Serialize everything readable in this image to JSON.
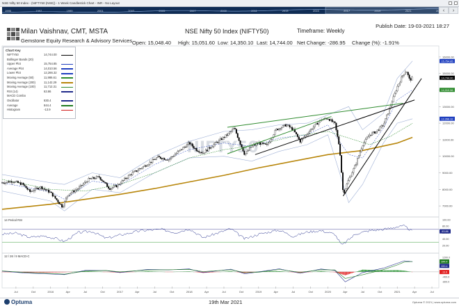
{
  "window": {
    "title": "NSE Nifty 50 Index - (NIFTY50 (NSE)) - 1 Week Candlestick Chart - INR - No Layout"
  },
  "overview": {
    "years": [
      "1995",
      "1997",
      "1999",
      "2001",
      "2003",
      "2005",
      "2007",
      "2009",
      "2011",
      "2013",
      "2015",
      "2017",
      "2019",
      "2021",
      "2023"
    ]
  },
  "header": {
    "author": "Milan Vaishnav, CMT, MSTA",
    "company": "Gemstone Equity Research & Advisory Services",
    "publish_date": "Publish Date: 19-03-2021 18:27",
    "chart_title": "NSE Nifty 50 Index (NIFTY50)",
    "timeframe": "Timeframe: Weekly",
    "quote": {
      "open": "Open: 15,048.40",
      "high": "High: 15,051.60",
      "low": "Low: 14,350.10",
      "last": "Last: 14,744.00",
      "net_change": "Net Change: -286.95",
      "change_pct": "Change (%): -1.91%"
    }
  },
  "legend": {
    "title": "Chart Key",
    "rows": [
      {
        "label": "NIFTY50",
        "value": "14,744.00",
        "color": "#000000"
      },
      {
        "label": "Bollinger Bands (20)",
        "value": "",
        "color": ""
      },
      {
        "label": "Upper Plot",
        "value": "15,754.85",
        "color": "#1f3fbf"
      },
      {
        "label": "Average Plot",
        "value": "14,010.56",
        "color": "#1f3fbf"
      },
      {
        "label": "Lower Plot",
        "value": "12,266.32",
        "color": "#1f3fbf"
      },
      {
        "label": "Moving Average (50)",
        "value": "11,986.61",
        "color": "#2e8b2e"
      },
      {
        "label": "Moving Average (200)",
        "value": "11,142.29",
        "color": "#b8860b"
      },
      {
        "label": "Moving Average (100)",
        "value": "11,712.31",
        "color": "#2e8b2e"
      },
      {
        "label": "RSI (14)",
        "value": "63.86",
        "color": "#1f2a8a"
      },
      {
        "label": "MACD Combo",
        "value": "",
        "color": ""
      },
      {
        "label": "Oscillator",
        "value": "830.4",
        "color": "#1f2a8a"
      },
      {
        "label": "Average",
        "value": "844.4",
        "color": "#1f7a1f"
      },
      {
        "label": "Histogram",
        "value": "-13.9",
        "color": "#d21c1c"
      }
    ]
  },
  "watermark": "NIFTY50",
  "footer": {
    "brand": "Optuma",
    "date": "19th Mar 2021",
    "copyright": "Optuma © 2021 | www.optuma.com"
  },
  "colors": {
    "candle": "#000000",
    "bollinger": "#1f3fbf",
    "ma50": "#2e8b2e",
    "ma200": "#b8860b",
    "trend_green": "#2e8b2e",
    "trend_black": "#000000",
    "rsi": "#1f2a8a",
    "macd_osc": "#1f2a8a",
    "macd_avg": "#1f7a1f",
    "hist_pos": "#1f8f2a",
    "hist_neg": "#e01e1e"
  },
  "chart_data": [
    {
      "type": "candlestick",
      "title": "NSE Nifty 50 Index (NIFTY50)",
      "ylim": [
        6500,
        16500
      ],
      "y_ticks": [
        "16000.00",
        "15000.00",
        "14000.00",
        "13000.00",
        "12000.00",
        "11000.00",
        "10000.00",
        "9000.00",
        "8000.00",
        "7000.00",
        "6000.00"
      ],
      "y_tick_values": [
        16000,
        15000,
        14000,
        13000,
        12000,
        11000,
        10000,
        9000,
        8000,
        7000,
        6000
      ],
      "x_ticks": [
        "Jul",
        "Oct",
        "2016",
        "Apr",
        "Jul",
        "Oct",
        "2017",
        "Apr",
        "Jul",
        "Oct",
        "2018",
        "Apr",
        "Jul",
        "Oct",
        "2019",
        "Apr",
        "Jul",
        "Oct",
        "2020",
        "Apr",
        "Jul",
        "Oct",
        "2021",
        "Apr",
        "Jul"
      ],
      "x_tick_values": [
        2015.5,
        2015.75,
        2016,
        2016.25,
        2016.5,
        2016.75,
        2017,
        2017.25,
        2017.5,
        2017.75,
        2018,
        2018.25,
        2018.5,
        2018.75,
        2019,
        2019.25,
        2019.5,
        2019.75,
        2020,
        2020.25,
        2020.5,
        2020.75,
        2021,
        2021.25,
        2021.5
      ],
      "xlim": [
        2015.3,
        2021.6
      ],
      "price_path": [
        [
          2015.3,
          8400
        ],
        [
          2015.45,
          8500
        ],
        [
          2015.6,
          8300
        ],
        [
          2015.7,
          7850
        ],
        [
          2015.85,
          8150
        ],
        [
          2016.0,
          7800
        ],
        [
          2016.1,
          7300
        ],
        [
          2016.17,
          6950
        ],
        [
          2016.25,
          7700
        ],
        [
          2016.4,
          8050
        ],
        [
          2016.55,
          8600
        ],
        [
          2016.7,
          8750
        ],
        [
          2016.85,
          8050
        ],
        [
          2016.95,
          8200
        ],
        [
          2017.15,
          8900
        ],
        [
          2017.35,
          9400
        ],
        [
          2017.55,
          9950
        ],
        [
          2017.7,
          9800
        ],
        [
          2017.85,
          10300
        ],
        [
          2018.0,
          10800
        ],
        [
          2018.1,
          10400
        ],
        [
          2018.2,
          10200
        ],
        [
          2018.35,
          10700
        ],
        [
          2018.55,
          11300
        ],
        [
          2018.65,
          11700
        ],
        [
          2018.8,
          10100
        ],
        [
          2018.9,
          10600
        ],
        [
          2019.0,
          10800
        ],
        [
          2019.12,
          10650
        ],
        [
          2019.25,
          11600
        ],
        [
          2019.4,
          11900
        ],
        [
          2019.5,
          11600
        ],
        [
          2019.6,
          10900
        ],
        [
          2019.75,
          11600
        ],
        [
          2019.9,
          12200
        ],
        [
          2020.0,
          12300
        ],
        [
          2020.1,
          11950
        ],
        [
          2020.17,
          10500
        ],
        [
          2020.22,
          7700
        ],
        [
          2020.3,
          8600
        ],
        [
          2020.4,
          9500
        ],
        [
          2020.5,
          10700
        ],
        [
          2020.6,
          11300
        ],
        [
          2020.7,
          11500
        ],
        [
          2020.8,
          11900
        ],
        [
          2020.9,
          13000
        ],
        [
          2021.0,
          14200
        ],
        [
          2021.08,
          14900
        ],
        [
          2021.13,
          15200
        ],
        [
          2021.18,
          14600
        ],
        [
          2021.22,
          14744
        ]
      ],
      "bollinger_upper": [
        [
          2015.3,
          8900
        ],
        [
          2016.0,
          8400
        ],
        [
          2016.2,
          8300
        ],
        [
          2016.6,
          9000
        ],
        [
          2017.0,
          8700
        ],
        [
          2017.5,
          10000
        ],
        [
          2018.0,
          10900
        ],
        [
          2018.5,
          11500
        ],
        [
          2018.9,
          11600
        ],
        [
          2019.3,
          11900
        ],
        [
          2019.7,
          12000
        ],
        [
          2020.0,
          12500
        ],
        [
          2020.3,
          13000
        ],
        [
          2020.5,
          11600
        ],
        [
          2020.8,
          12600
        ],
        [
          2021.0,
          14700
        ],
        [
          2021.22,
          15755
        ]
      ],
      "bollinger_lower": [
        [
          2015.3,
          7900
        ],
        [
          2016.0,
          7300
        ],
        [
          2016.2,
          6700
        ],
        [
          2016.6,
          8000
        ],
        [
          2017.0,
          7800
        ],
        [
          2017.5,
          9000
        ],
        [
          2018.0,
          9900
        ],
        [
          2018.5,
          10000
        ],
        [
          2018.9,
          9700
        ],
        [
          2019.3,
          10300
        ],
        [
          2019.7,
          10700
        ],
        [
          2020.0,
          11300
        ],
        [
          2020.3,
          7200
        ],
        [
          2020.5,
          8300
        ],
        [
          2020.8,
          10800
        ],
        [
          2021.0,
          12000
        ],
        [
          2021.22,
          12266
        ]
      ],
      "bollinger_avg": [
        [
          2015.3,
          8400
        ],
        [
          2016.0,
          7850
        ],
        [
          2016.2,
          7400
        ],
        [
          2016.6,
          8500
        ],
        [
          2017.0,
          8250
        ],
        [
          2017.5,
          9500
        ],
        [
          2018.0,
          10400
        ],
        [
          2018.5,
          10800
        ],
        [
          2018.9,
          10600
        ],
        [
          2019.3,
          11100
        ],
        [
          2019.7,
          11300
        ],
        [
          2020.0,
          11900
        ],
        [
          2020.3,
          10100
        ],
        [
          2020.5,
          9900
        ],
        [
          2020.8,
          11700
        ],
        [
          2021.0,
          13400
        ],
        [
          2021.22,
          14011
        ]
      ],
      "ma50": [
        [
          2015.3,
          8600
        ],
        [
          2016.0,
          8000
        ],
        [
          2016.5,
          7900
        ],
        [
          2017.0,
          8300
        ],
        [
          2017.5,
          9000
        ],
        [
          2018.0,
          9900
        ],
        [
          2018.5,
          10400
        ],
        [
          2019.0,
          10700
        ],
        [
          2019.5,
          11200
        ],
        [
          2020.0,
          11500
        ],
        [
          2020.3,
          11100
        ],
        [
          2020.6,
          10700
        ],
        [
          2020.9,
          11200
        ],
        [
          2021.22,
          11987
        ]
      ],
      "ma200": [
        [
          2015.3,
          6800
        ],
        [
          2016.0,
          7100
        ],
        [
          2016.5,
          7400
        ],
        [
          2017.0,
          7700
        ],
        [
          2017.5,
          8050
        ],
        [
          2018.0,
          8450
        ],
        [
          2018.5,
          8850
        ],
        [
          2019.0,
          9300
        ],
        [
          2019.5,
          9700
        ],
        [
          2020.0,
          10100
        ],
        [
          2020.5,
          10350
        ],
        [
          2021.0,
          10800
        ],
        [
          2021.22,
          11142
        ]
      ],
      "trendlines": [
        {
          "color": "green",
          "points": [
            [
              2018.55,
              11750
            ],
            [
              2021.08,
              13200
            ]
          ]
        },
        {
          "color": "green",
          "points": [
            [
              2018.55,
              10150
            ],
            [
              2020.05,
              12400
            ]
          ]
        },
        {
          "color": "black",
          "points": [
            [
              2018.95,
              10100
            ],
            [
              2021.25,
              13400
            ]
          ]
        },
        {
          "color": "black",
          "points": [
            [
              2020.22,
              7600
            ],
            [
              2021.35,
              14700
            ]
          ]
        }
      ],
      "last_value_labels": [
        "15,754.85",
        "14,744.00",
        "14,010.56",
        "12,266.32"
      ]
    },
    {
      "type": "line",
      "title": "14 Period RSI",
      "ylim": [
        0,
        100
      ],
      "y_ticks": [
        "100.00",
        "80.00",
        "60.00",
        "40.00",
        "20.00"
      ],
      "y_tick_values": [
        100,
        80,
        60,
        40,
        20
      ],
      "reference_lines": [
        70,
        30
      ],
      "last_value": "63.86",
      "series": [
        {
          "name": "RSI (14)",
          "values": [
            [
              2015.3,
              55
            ],
            [
              2015.5,
              58
            ],
            [
              2015.7,
              45
            ],
            [
              2015.9,
              50
            ],
            [
              2016.1,
              40
            ],
            [
              2016.2,
              32
            ],
            [
              2016.4,
              60
            ],
            [
              2016.6,
              64
            ],
            [
              2016.8,
              42
            ],
            [
              2017.0,
              52
            ],
            [
              2017.3,
              66
            ],
            [
              2017.6,
              70
            ],
            [
              2017.8,
              60
            ],
            [
              2018.0,
              72
            ],
            [
              2018.2,
              44
            ],
            [
              2018.4,
              58
            ],
            [
              2018.6,
              72
            ],
            [
              2018.8,
              40
            ],
            [
              2019.0,
              55
            ],
            [
              2019.3,
              68
            ],
            [
              2019.5,
              48
            ],
            [
              2019.7,
              62
            ],
            [
              2019.9,
              66
            ],
            [
              2020.1,
              55
            ],
            [
              2020.2,
              20
            ],
            [
              2020.4,
              56
            ],
            [
              2020.6,
              66
            ],
            [
              2020.8,
              70
            ],
            [
              2021.0,
              78
            ],
            [
              2021.1,
              80
            ],
            [
              2021.22,
              64
            ]
          ]
        }
      ]
    },
    {
      "type": "line",
      "title": "12 / 26 / 9 MACD-C",
      "ylim": [
        -1200,
        1300
      ],
      "y_ticks": [
        "1200.0",
        "1000.0",
        "800.0",
        "600.0",
        "400.0",
        "200.0",
        "0.0",
        "-200.0",
        "-400.0",
        "-600.0",
        "-800.0",
        "-1000.0"
      ],
      "y_tick_values": [
        1200,
        1000,
        800,
        600,
        400,
        200,
        0,
        -200,
        -400,
        -600,
        -800,
        -1000
      ],
      "last_values": [
        "844.4",
        "830.4",
        "-13.9"
      ],
      "series": [
        {
          "name": "Oscillator",
          "values": [
            [
              2015.3,
              60
            ],
            [
              2015.6,
              -80
            ],
            [
              2016.0,
              -180
            ],
            [
              2016.2,
              -220
            ],
            [
              2016.5,
              120
            ],
            [
              2016.8,
              100
            ],
            [
              2017.0,
              -60
            ],
            [
              2017.4,
              200
            ],
            [
              2017.7,
              160
            ],
            [
              2018.0,
              240
            ],
            [
              2018.2,
              -60
            ],
            [
              2018.6,
              220
            ],
            [
              2018.8,
              -160
            ],
            [
              2019.0,
              0
            ],
            [
              2019.3,
              250
            ],
            [
              2019.6,
              -120
            ],
            [
              2019.9,
              230
            ],
            [
              2020.1,
              120
            ],
            [
              2020.25,
              -820
            ],
            [
              2020.5,
              -60
            ],
            [
              2020.8,
              300
            ],
            [
              2021.0,
              700
            ],
            [
              2021.1,
              900
            ],
            [
              2021.22,
              830
            ]
          ]
        },
        {
          "name": "Average",
          "values": [
            [
              2015.3,
              80
            ],
            [
              2015.6,
              -40
            ],
            [
              2016.0,
              -130
            ],
            [
              2016.2,
              -190
            ],
            [
              2016.5,
              60
            ],
            [
              2016.8,
              110
            ],
            [
              2017.0,
              0
            ],
            [
              2017.4,
              150
            ],
            [
              2017.7,
              170
            ],
            [
              2018.0,
              200
            ],
            [
              2018.2,
              20
            ],
            [
              2018.6,
              170
            ],
            [
              2018.8,
              -60
            ],
            [
              2019.0,
              -30
            ],
            [
              2019.3,
              190
            ],
            [
              2019.6,
              -40
            ],
            [
              2019.9,
              170
            ],
            [
              2020.1,
              150
            ],
            [
              2020.25,
              -540
            ],
            [
              2020.5,
              -240
            ],
            [
              2020.8,
              180
            ],
            [
              2021.0,
              560
            ],
            [
              2021.1,
              800
            ],
            [
              2021.22,
              844
            ]
          ]
        }
      ],
      "histogram_note": "Oscillator minus Average, green above zero, red below"
    }
  ]
}
